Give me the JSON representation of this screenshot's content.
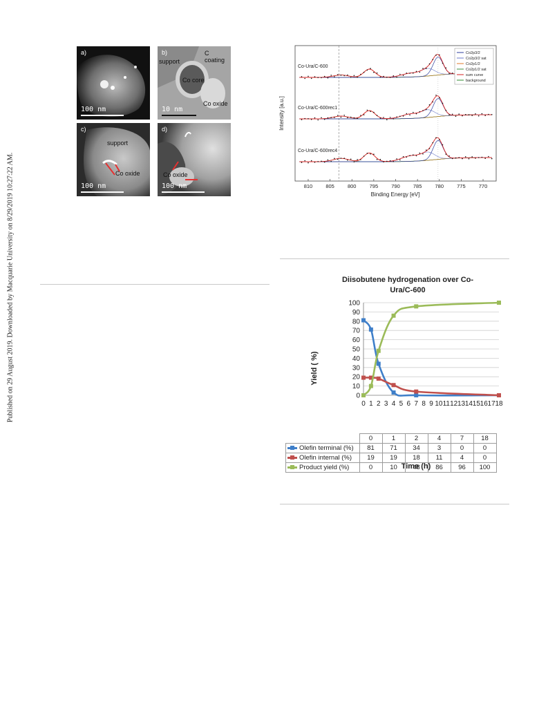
{
  "sidebar_text": "Published on 29 August 2019. Downloaded by Macquarie University on 8/29/2019 10:27:22 AM.",
  "tem": {
    "a": {
      "label": "a)",
      "scale": "100 nm"
    },
    "b": {
      "label": "b)",
      "scale": "10 nm",
      "support": "support",
      "c_coating": "C coating",
      "co_core": "Co core",
      "co_oxide": "Co oxide"
    },
    "c": {
      "label": "c)",
      "scale": "100 nm",
      "support": "support",
      "co_oxide": "Co oxide"
    },
    "d": {
      "label": "d)",
      "scale": "100 nm",
      "co_oxide": "Co oxide"
    }
  },
  "xps": {
    "xlabel": "Binding Energy [eV]",
    "ylabel": "Intensity [a.u.]",
    "x_ticks": [
      "810",
      "805",
      "800",
      "795",
      "790",
      "785",
      "780",
      "775",
      "770"
    ],
    "samples": [
      "Co-Ura/C-600",
      "Co-Ura/C-600rec1",
      "Co-Ura/C-600rec4"
    ],
    "legend": [
      "Co2p3/2",
      "Co2p3/2 sat",
      "Co2p1/2",
      "Co2p1/2 sat",
      "sum curve",
      "background"
    ],
    "colors": {
      "p32": "#2b3e9e",
      "p32sat": "#6a78c8",
      "p12": "#e07a2a",
      "p12sat": "#3e8e3e",
      "sum": "#d42020",
      "bg": "#2e8b2e"
    }
  },
  "chart_data": {
    "type": "line",
    "title": "Diisobutene hydrogenation over Co-Ura/C-600",
    "xlabel": "Time (h)",
    "ylabel": "Yield ( %)",
    "xlim": [
      0,
      18
    ],
    "ylim": [
      0,
      100
    ],
    "x_ticks": [
      "0",
      "1",
      "2",
      "3",
      "4",
      "5",
      "6",
      "7",
      "8",
      "9",
      "10",
      "11",
      "12",
      "13",
      "14",
      "15",
      "16",
      "17",
      "18"
    ],
    "y_ticks": [
      "100",
      "90",
      "80",
      "70",
      "60",
      "50",
      "40",
      "30",
      "20",
      "10",
      "0"
    ],
    "x": [
      0,
      1,
      2,
      4,
      7,
      18
    ],
    "table_header": [
      "0",
      "1",
      "2",
      "4",
      "7",
      "18"
    ],
    "series": [
      {
        "name": "Olefin terminal (%)",
        "color": "#3f7fc9",
        "values": [
          81,
          71,
          34,
          3,
          0,
          0
        ],
        "cells": [
          "81",
          "71",
          "34",
          "3",
          "0",
          "0"
        ]
      },
      {
        "name": "Olefin internal (%)",
        "color": "#c0504d",
        "values": [
          19,
          19,
          18,
          11,
          4,
          0
        ],
        "cells": [
          "19",
          "19",
          "18",
          "11",
          "4",
          "0"
        ]
      },
      {
        "name": "Product yield (%)",
        "color": "#9bbb59",
        "values": [
          0,
          10,
          48,
          86,
          96,
          100
        ],
        "cells": [
          "0",
          "10",
          "48",
          "86",
          "96",
          "100"
        ]
      }
    ]
  }
}
